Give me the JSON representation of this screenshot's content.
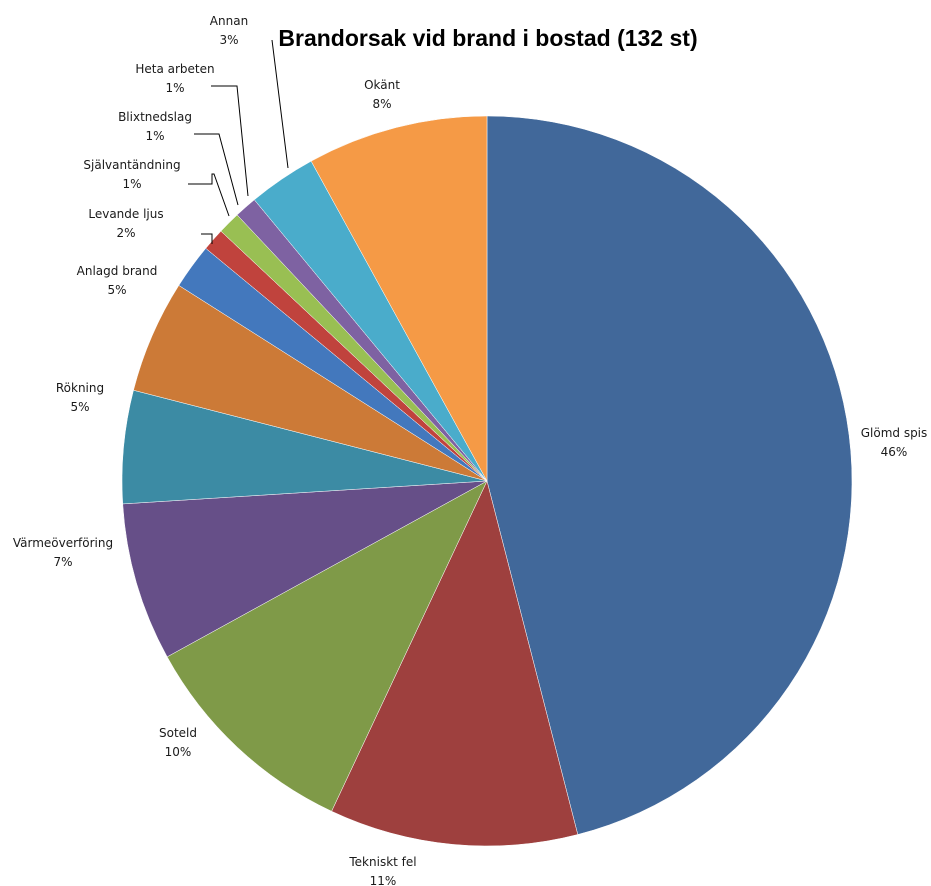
{
  "chart_data": {
    "type": "pie",
    "title": "Brandorsak vid brand i bostad (132 st)",
    "direction": "clockwise-from-top",
    "slices": [
      {
        "label": "Glömd spis",
        "value": 46,
        "value_label": "46%",
        "color": "#41689a"
      },
      {
        "label": "Tekniskt fel",
        "value": 11,
        "value_label": "11%",
        "color": "#9e403e"
      },
      {
        "label": "Soteld",
        "value": 10,
        "value_label": "10%",
        "color": "#7f9a48"
      },
      {
        "label": "Värmeöverföring",
        "value": 7,
        "value_label": "7%",
        "color": "#664f88"
      },
      {
        "label": "Rökning",
        "value": 5,
        "value_label": "5%",
        "color": "#3c8ba4"
      },
      {
        "label": "Anlagd brand",
        "value": 5,
        "value_label": "5%",
        "color": "#cc7a37"
      },
      {
        "label": "Levande ljus",
        "value": 2,
        "value_label": "2%",
        "color": "#4378bd"
      },
      {
        "label": "Självantändning",
        "value": 1,
        "value_label": "1%",
        "color": "#c0433d"
      },
      {
        "label": "Blixtnedslag",
        "value": 1,
        "value_label": "1%",
        "color": "#99bf53"
      },
      {
        "label": "Heta arbeten",
        "value": 1,
        "value_label": "1%",
        "color": "#7e62a2"
      },
      {
        "label": "Annan",
        "value": 3,
        "value_label": "3%",
        "color": "#4aaccb"
      },
      {
        "label": "Okänt",
        "value": 8,
        "value_label": "8%",
        "color": "#f59a46"
      }
    ]
  }
}
